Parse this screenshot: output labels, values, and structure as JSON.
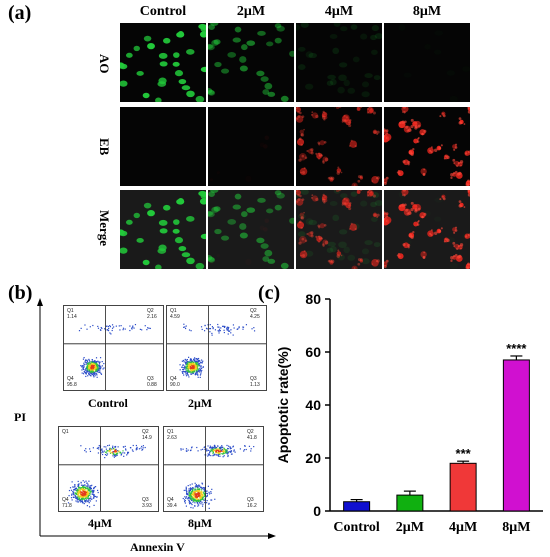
{
  "panel_a": {
    "label": "(a)",
    "columns": [
      "Control",
      "2μM",
      "4μM",
      "8μM"
    ],
    "rows": [
      "AO",
      "EB",
      "Merge"
    ]
  },
  "panel_b": {
    "label": "(b)",
    "y_axis_label": "PI",
    "x_axis_label": "Annexin V",
    "plots": [
      {
        "name": "Control",
        "q1": "1.14",
        "q2": "2.16",
        "q3": "0.88",
        "q4": "95.8"
      },
      {
        "name": "2μM",
        "q1": "4.59",
        "q2": "4.25",
        "q3": "1.13",
        "q4": "90.0"
      },
      {
        "name": "4μM",
        "q1": "",
        "q2": "14.9",
        "q3": "3.93",
        "q4": "71.8"
      },
      {
        "name": "8μM",
        "q1": "2.63",
        "q2": "41.8",
        "q3": "16.2",
        "q4": "39.4"
      }
    ],
    "quadrant_names": [
      "Q1",
      "Q2",
      "Q3",
      "Q4"
    ]
  },
  "panel_c": {
    "label": "(c)"
  },
  "chart_data": {
    "type": "bar",
    "categories": [
      "Control",
      "2μM",
      "4μM",
      "8μM"
    ],
    "values": [
      3.5,
      6.0,
      18.0,
      57.0
    ],
    "errors": [
      0.8,
      1.5,
      0.8,
      1.5
    ],
    "significance": [
      "",
      "",
      "***",
      "****"
    ],
    "colors": [
      "#1010d0",
      "#10b010",
      "#f03838",
      "#d010d0"
    ],
    "ylabel": "Apoptotic rate(%)",
    "ylim": [
      0,
      80
    ],
    "yticks": [
      0,
      20,
      40,
      60,
      80
    ],
    "grid": false
  }
}
